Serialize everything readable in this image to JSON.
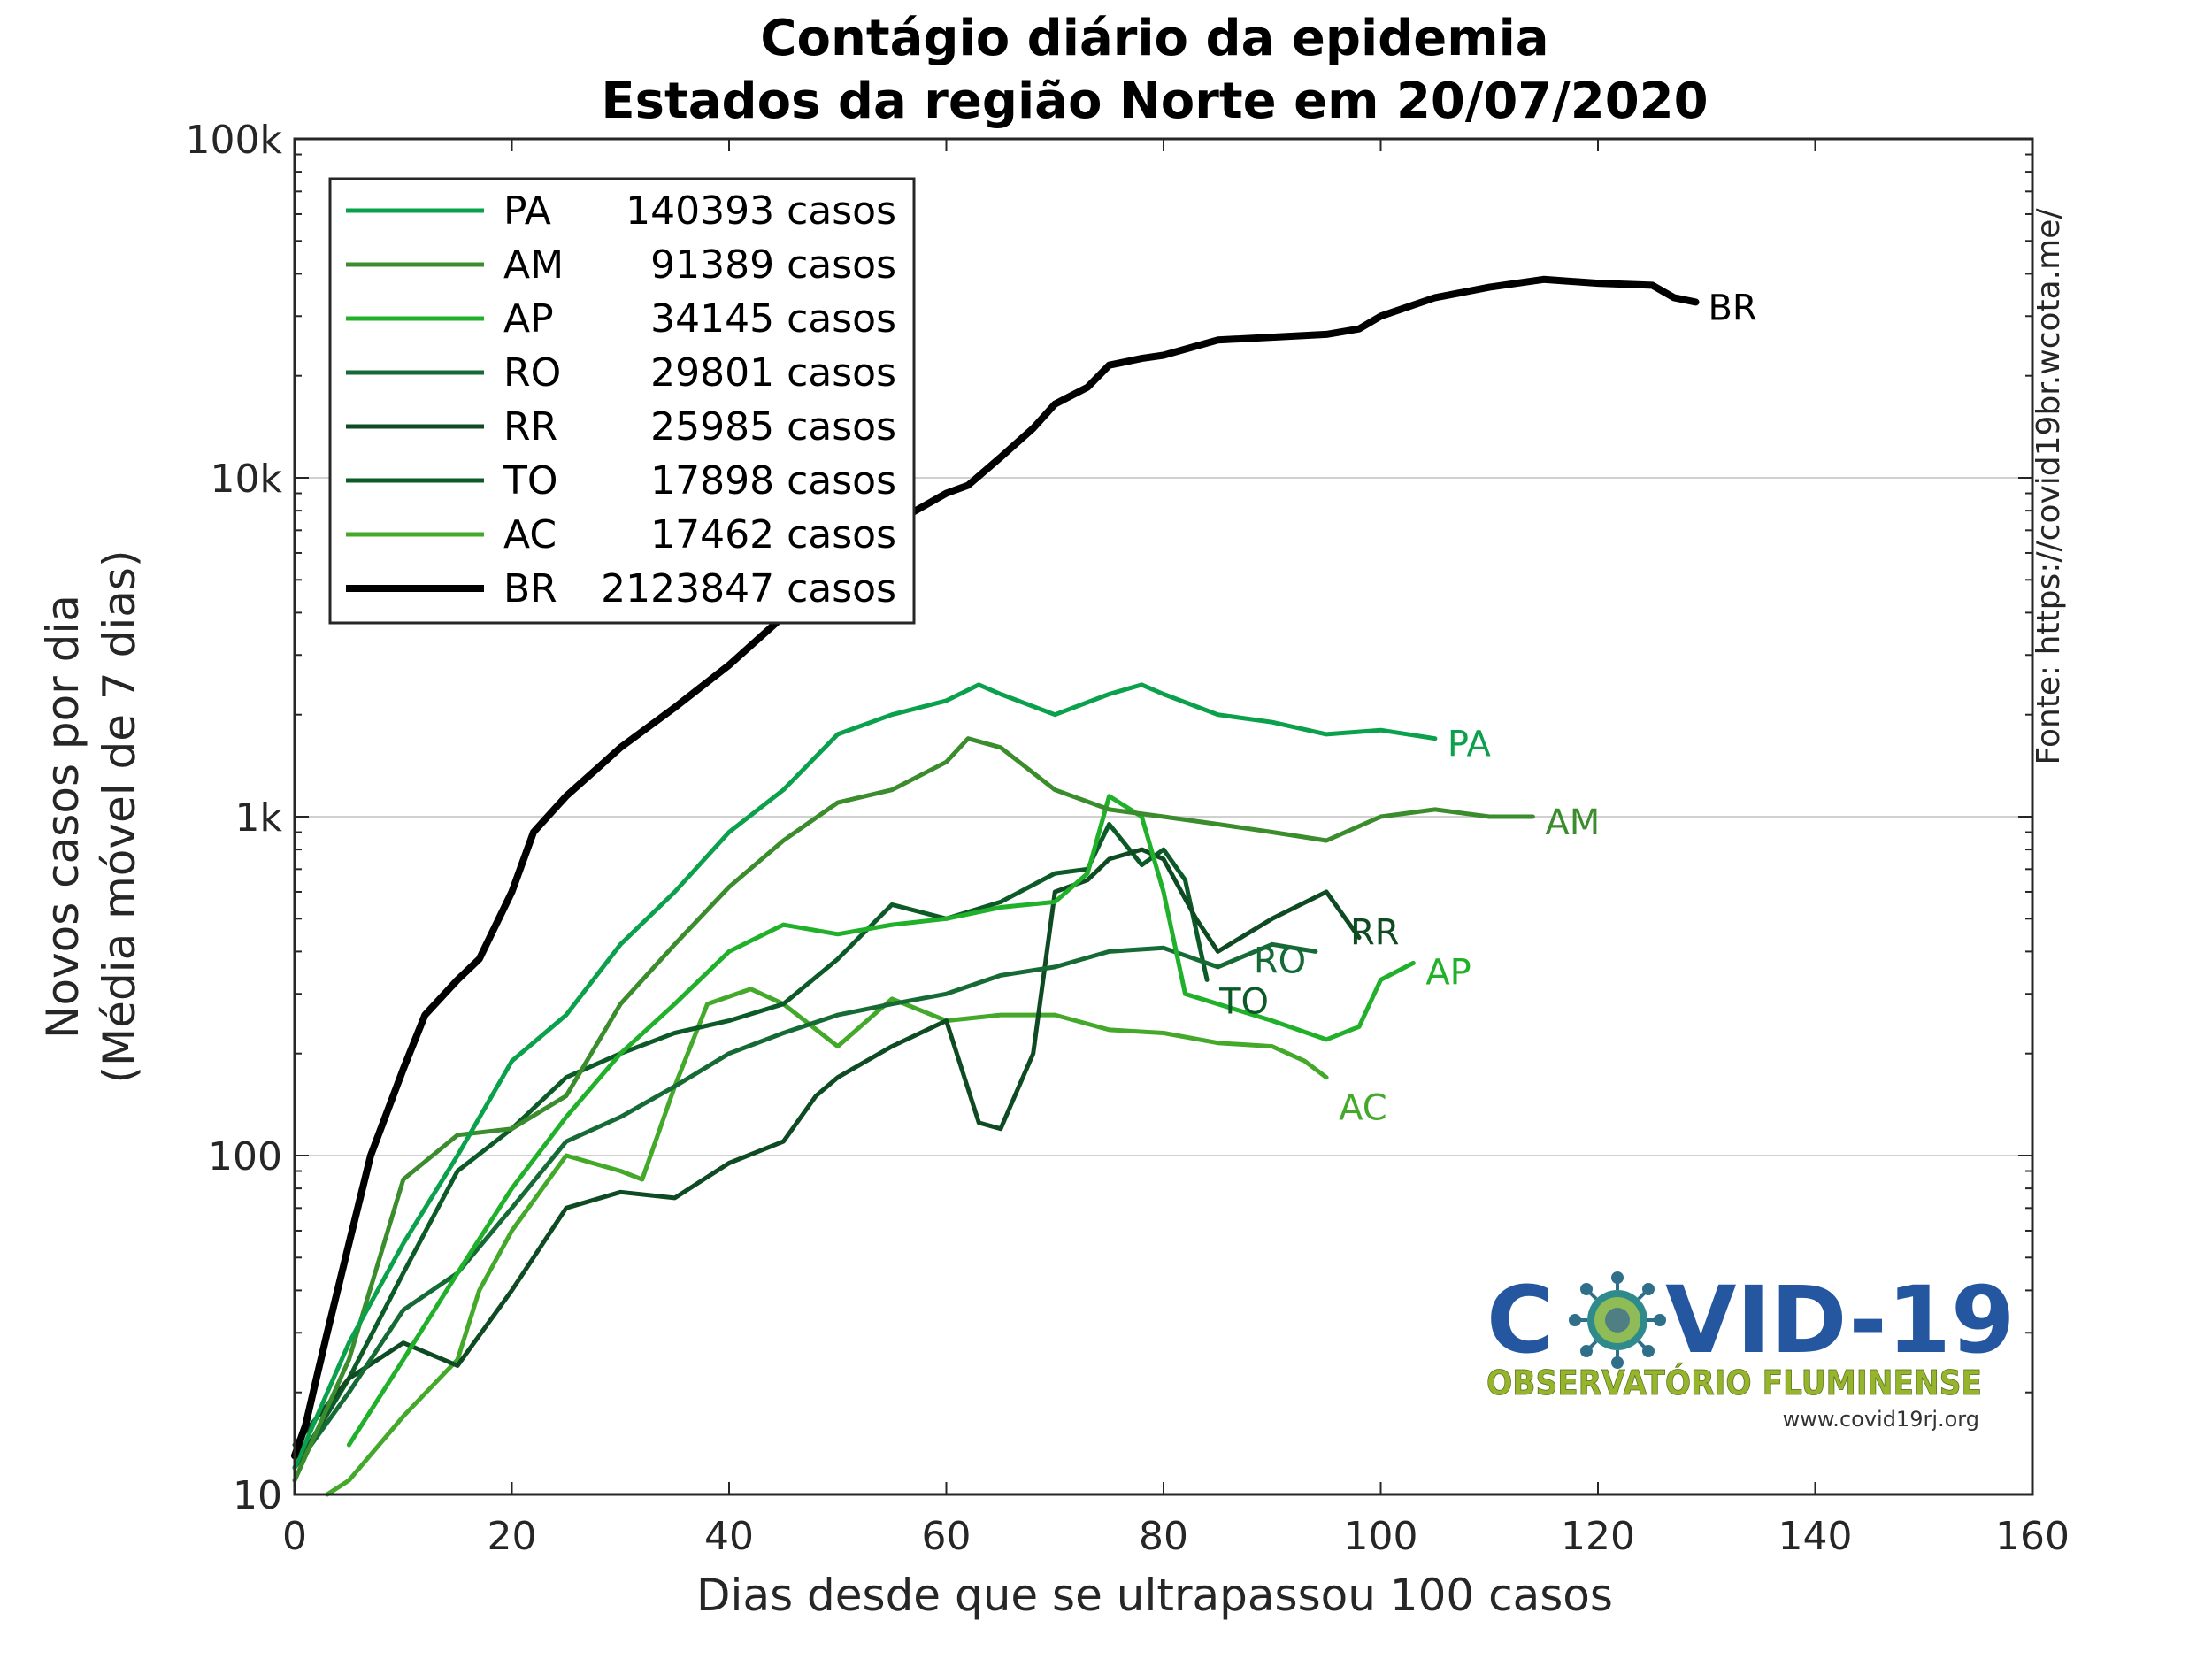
{
  "chart_data": {
    "type": "line",
    "title": "Contágio diário da epidemia",
    "subtitle": "Estados da região Norte em 20/07/2020",
    "xlabel": "Dias desde que se ultrapassou 100 casos",
    "ylabel_line1": "Novos casos por dia",
    "ylabel_line2": "(Média móvel de 7 dias)",
    "source": "Fonte: https://covid19br.wcota.me/",
    "y_scale": "log",
    "xlim": [
      0,
      160
    ],
    "ylim": [
      10,
      100000
    ],
    "x_ticks": [
      "0",
      "20",
      "40",
      "60",
      "80",
      "100",
      "120",
      "140",
      "160"
    ],
    "y_ticks": [
      "10",
      "100",
      "1k",
      "10k",
      "100k"
    ],
    "grid": "horizontal at decades",
    "legend_position": "top-left",
    "legend": [
      {
        "code": "PA",
        "total": "140393 casos"
      },
      {
        "code": "AM",
        "total": "91389 casos"
      },
      {
        "code": "AP",
        "total": "34145 casos"
      },
      {
        "code": "RO",
        "total": "29801 casos"
      },
      {
        "code": "RR",
        "total": "25985 casos"
      },
      {
        "code": "TO",
        "total": "17898 casos"
      },
      {
        "code": "AC",
        "total": "17462 casos"
      },
      {
        "code": "BR",
        "total": "2123847 casos"
      }
    ],
    "series": [
      {
        "name": "PA",
        "color": "#0aa04c",
        "x": [
          0,
          5,
          10,
          15,
          20,
          25,
          30,
          35,
          40,
          45,
          50,
          55,
          60,
          63,
          65,
          70,
          75,
          78,
          80,
          85,
          90,
          95,
          100,
          105
        ],
        "y": [
          12,
          28,
          55,
          100,
          190,
          260,
          420,
          600,
          900,
          1200,
          1750,
          2000,
          2200,
          2450,
          2300,
          2000,
          2300,
          2450,
          2300,
          2000,
          1900,
          1750,
          1800,
          1700
        ]
      },
      {
        "name": "AM",
        "color": "#3a8c2c",
        "x": [
          0,
          5,
          10,
          15,
          20,
          25,
          30,
          35,
          40,
          45,
          50,
          55,
          60,
          62,
          65,
          70,
          75,
          80,
          85,
          90,
          95,
          100,
          105,
          110,
          114
        ],
        "y": [
          11,
          25,
          85,
          115,
          120,
          150,
          280,
          420,
          620,
          850,
          1100,
          1200,
          1450,
          1700,
          1600,
          1200,
          1050,
          1000,
          950,
          900,
          850,
          1000,
          1050,
          1000,
          1000
        ]
      },
      {
        "name": "AP",
        "color": "#20b02a",
        "x": [
          5,
          10,
          15,
          20,
          25,
          30,
          35,
          40,
          45,
          50,
          55,
          60,
          65,
          70,
          73,
          75,
          78,
          80,
          82,
          85,
          90,
          95,
          98,
          100,
          103
        ],
        "y": [
          14,
          25,
          45,
          80,
          130,
          200,
          280,
          400,
          480,
          450,
          480,
          500,
          540,
          560,
          680,
          1150,
          1000,
          600,
          300,
          280,
          250,
          220,
          240,
          330,
          370
        ]
      },
      {
        "name": "RO",
        "color": "#156a35",
        "x": [
          0,
          5,
          10,
          15,
          20,
          25,
          30,
          35,
          40,
          45,
          50,
          55,
          60,
          65,
          70,
          75,
          80,
          85,
          90,
          94
        ],
        "y": [
          12,
          20,
          35,
          45,
          70,
          110,
          130,
          160,
          200,
          230,
          260,
          280,
          300,
          340,
          360,
          400,
          410,
          360,
          420,
          400
        ]
      },
      {
        "name": "RR",
        "color": "#0e4a22",
        "x": [
          0,
          5,
          10,
          15,
          20,
          25,
          30,
          35,
          40,
          45,
          48,
          50,
          55,
          60,
          63,
          65,
          68,
          70,
          73,
          75,
          78,
          80,
          83,
          85,
          90,
          95,
          98
        ],
        "y": [
          14,
          22,
          28,
          24,
          40,
          70,
          78,
          75,
          95,
          110,
          150,
          170,
          210,
          250,
          125,
          120,
          200,
          600,
          650,
          750,
          800,
          750,
          500,
          400,
          500,
          600,
          440
        ]
      },
      {
        "name": "TO",
        "color": "#0c5a28",
        "x": [
          0,
          5,
          10,
          15,
          20,
          25,
          30,
          35,
          40,
          45,
          50,
          55,
          60,
          65,
          70,
          73,
          75,
          78,
          80,
          82,
          84
        ],
        "y": [
          12,
          22,
          45,
          90,
          120,
          170,
          200,
          230,
          250,
          280,
          380,
          550,
          500,
          560,
          680,
          700,
          950,
          720,
          800,
          650,
          330
        ]
      },
      {
        "name": "AC",
        "color": "#44a82a",
        "x": [
          3,
          5,
          10,
          15,
          17,
          20,
          25,
          30,
          32,
          35,
          38,
          42,
          45,
          50,
          55,
          60,
          65,
          70,
          75,
          80,
          85,
          90,
          93,
          95
        ],
        "y": [
          10,
          11,
          17,
          25,
          40,
          60,
          100,
          90,
          85,
          160,
          280,
          310,
          280,
          210,
          290,
          250,
          260,
          260,
          235,
          230,
          215,
          210,
          190,
          170
        ]
      },
      {
        "name": "BR",
        "color": "#000000",
        "x": [
          0,
          1,
          2,
          3,
          5,
          7,
          10,
          12,
          15,
          17,
          20,
          22,
          25,
          28,
          30,
          35,
          40,
          45,
          50,
          55,
          60,
          62,
          65,
          68,
          70,
          73,
          75,
          78,
          80,
          85,
          90,
          95,
          98,
          100,
          105,
          110,
          115,
          120,
          125,
          127,
          129
        ],
        "y": [
          13,
          16,
          22,
          30,
          55,
          100,
          180,
          260,
          330,
          380,
          600,
          900,
          1150,
          1400,
          1600,
          2100,
          2800,
          3900,
          5300,
          7300,
          9000,
          9500,
          11500,
          14000,
          16500,
          18500,
          21500,
          22500,
          23000,
          25500,
          26000,
          26500,
          27500,
          30000,
          34000,
          36500,
          38500,
          37500,
          37000,
          34000,
          33000
        ]
      }
    ]
  },
  "logo": {
    "main_left": "C",
    "main_right": "VID-19",
    "subtitle": "OBSERVATÓRIO FLUMINENSE",
    "url": "www.covid19rj.org"
  }
}
